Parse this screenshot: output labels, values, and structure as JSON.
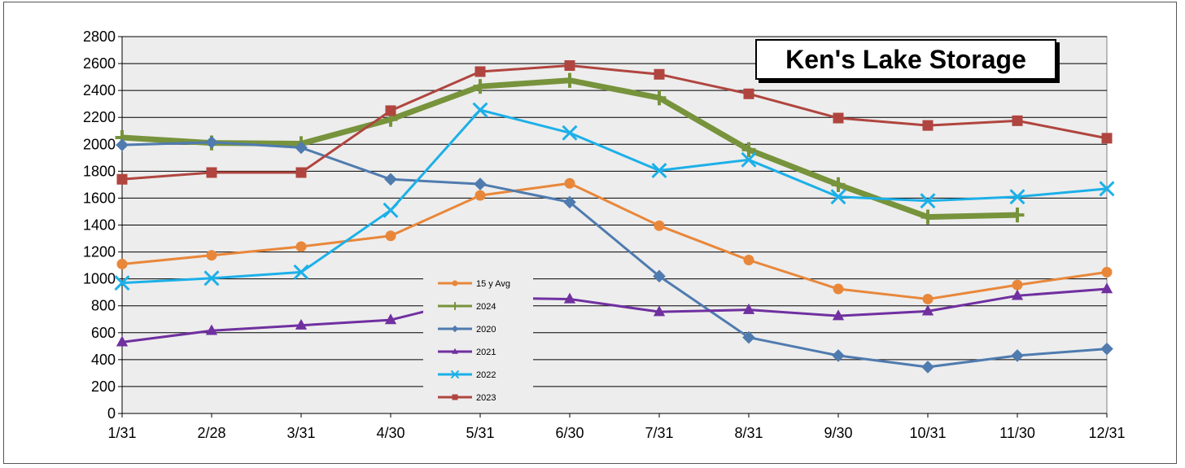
{
  "chart_data": {
    "type": "line",
    "title": "Ken's Lake Storage",
    "xlabel": "",
    "ylabel": "",
    "categories": [
      "1/31",
      "2/28",
      "3/31",
      "4/30",
      "5/31",
      "6/30",
      "7/31",
      "8/31",
      "9/30",
      "10/31",
      "11/30",
      "12/31"
    ],
    "ylim": [
      0,
      2800
    ],
    "yticks": [
      0,
      200,
      400,
      600,
      800,
      1000,
      1200,
      1400,
      1600,
      1800,
      2000,
      2200,
      2400,
      2600,
      2800
    ],
    "grid": true,
    "legend_position": "center-left",
    "series": [
      {
        "name": "15 y Avg",
        "color": "#E8873A",
        "marker": "circle",
        "width": 3,
        "values": [
          1110,
          1175,
          1240,
          1320,
          1620,
          1710,
          1395,
          1140,
          925,
          850,
          955,
          1050
        ]
      },
      {
        "name": "2024",
        "color": "#77933C",
        "marker": "plus",
        "width": 7,
        "values": [
          2050,
          2010,
          2005,
          2185,
          2430,
          2475,
          2345,
          1960,
          1700,
          1460,
          1475,
          null
        ]
      },
      {
        "name": "2020",
        "color": "#4F7BAF",
        "marker": "diamond",
        "width": 3,
        "values": [
          1995,
          2015,
          1975,
          1740,
          1705,
          1570,
          1020,
          565,
          430,
          345,
          430,
          480
        ]
      },
      {
        "name": "2021",
        "color": "#7030A0",
        "marker": "triangle",
        "width": 3,
        "values": [
          530,
          615,
          655,
          695,
          860,
          850,
          755,
          770,
          725,
          760,
          875,
          925
        ]
      },
      {
        "name": "2022",
        "color": "#1CB0E8",
        "marker": "x",
        "width": 3,
        "values": [
          970,
          1005,
          1050,
          1510,
          2255,
          2085,
          1805,
          1885,
          1610,
          1580,
          1610,
          1670
        ]
      },
      {
        "name": "2023",
        "color": "#B0453F",
        "marker": "square",
        "width": 3,
        "values": [
          1740,
          1790,
          1790,
          2250,
          2540,
          2585,
          2520,
          2375,
          2195,
          2140,
          2175,
          2045
        ]
      }
    ]
  }
}
